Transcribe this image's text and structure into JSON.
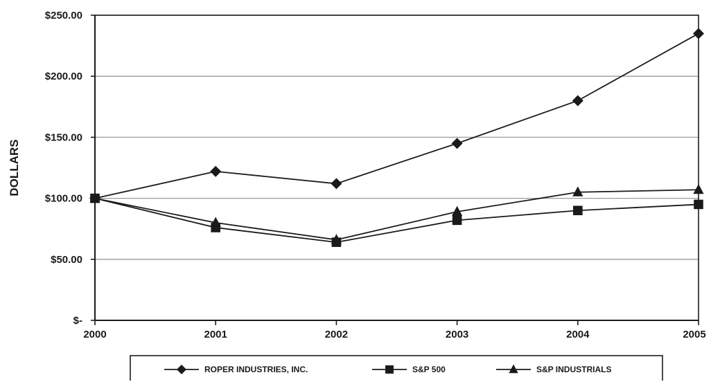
{
  "chart_data": {
    "type": "line",
    "ylabel": "DOLLARS",
    "xlabel": "",
    "categories": [
      "2000",
      "2001",
      "2002",
      "2003",
      "2004",
      "2005"
    ],
    "ylim": [
      0,
      250
    ],
    "y_ticks": [
      0,
      50,
      100,
      150,
      200,
      250
    ],
    "y_tick_labels": [
      "$-",
      "$50.00",
      "$100.00",
      "$150.00",
      "$200.00",
      "$250.00"
    ],
    "grid": "horizontal",
    "legend_position": "bottom",
    "series": [
      {
        "name": "ROPER INDUSTRIES, INC.",
        "marker": "diamond",
        "values": [
          100,
          122,
          112,
          145,
          180,
          235
        ]
      },
      {
        "name": "S&P 500",
        "marker": "square",
        "values": [
          100,
          76,
          64,
          82,
          90,
          95
        ]
      },
      {
        "name": "S&P INDUSTRIALS",
        "marker": "triangle",
        "values": [
          100,
          80,
          66,
          89,
          105,
          107
        ]
      }
    ],
    "colors": {
      "line": "#1a1a1a",
      "grid": "#9a9a9a",
      "axis": "#1a1a1a"
    }
  }
}
